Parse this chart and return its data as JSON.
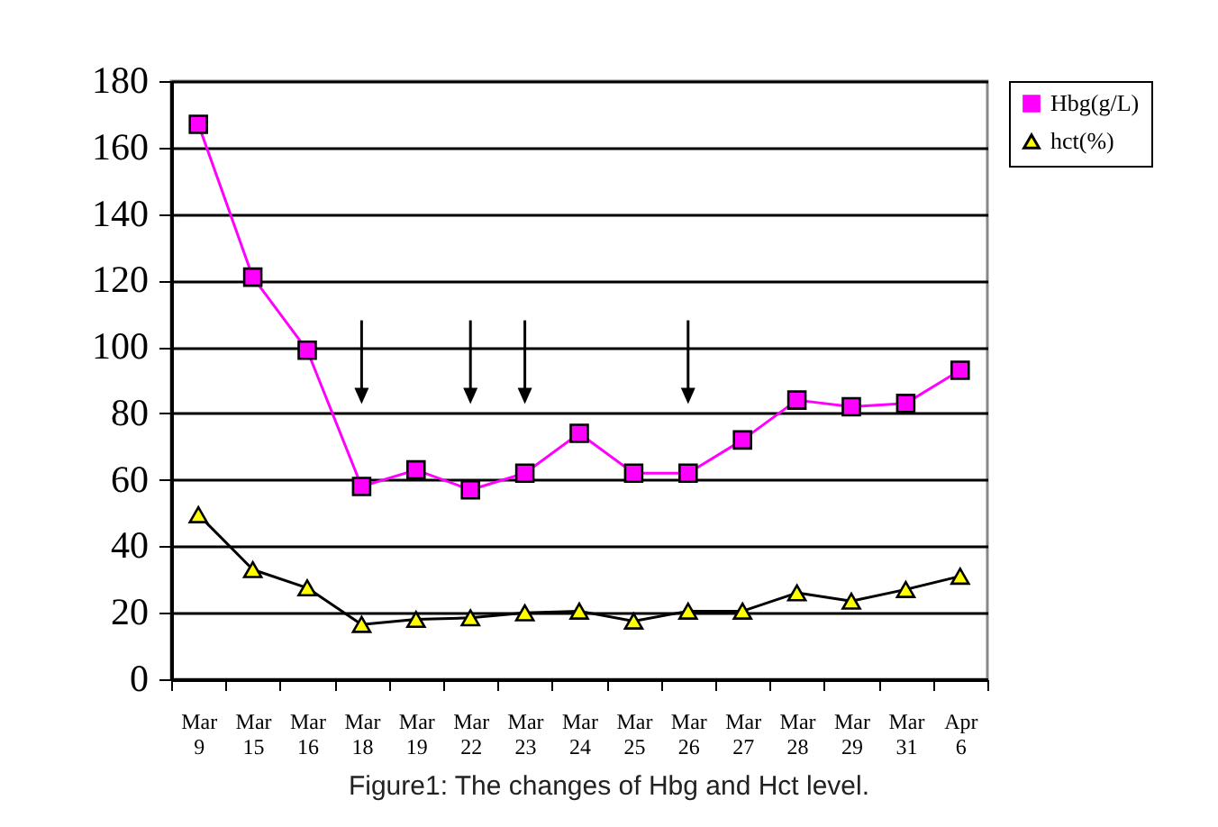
{
  "chart_data": {
    "type": "line",
    "categories": [
      "Mar 9",
      "Mar 15",
      "Mar 16",
      "Mar 18",
      "Mar 19",
      "Mar 22",
      "Mar 23",
      "Mar 24",
      "Mar 25",
      "Mar 26",
      "Mar 27",
      "Mar 28",
      "Mar 29",
      "Mar 31",
      "Apr 6"
    ],
    "series": [
      {
        "name": "Hbg(g/L)",
        "color": "#ff00ff",
        "marker": "square",
        "values": [
          167,
          121,
          99,
          58,
          63,
          57,
          62,
          74,
          62,
          62,
          72,
          84,
          82,
          83,
          93
        ]
      },
      {
        "name": "hct(%)",
        "color": "#000000",
        "marker": "triangle",
        "values": [
          49.5,
          33,
          27.5,
          16.5,
          18,
          18.5,
          20,
          20.5,
          17.5,
          20.5,
          20.5,
          26,
          23.5,
          27,
          31
        ]
      }
    ],
    "ylim": [
      0,
      180
    ],
    "yticks": [
      0,
      20,
      40,
      60,
      80,
      100,
      120,
      140,
      160,
      180
    ],
    "grid": "y",
    "legend": "right",
    "annotations": [
      "Figure1: The changes of Hbg and Hct level."
    ]
  }
}
